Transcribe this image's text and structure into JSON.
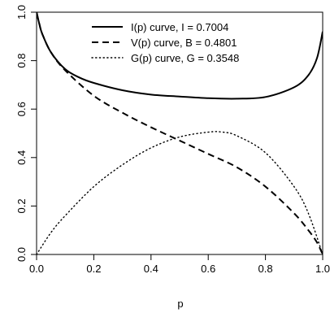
{
  "chart_data": {
    "type": "line",
    "title": "",
    "xlabel": "p",
    "ylabel": "",
    "xlim": [
      0,
      1
    ],
    "ylim": [
      0,
      1
    ],
    "x_ticks": [
      "0.0",
      "0.2",
      "0.4",
      "0.6",
      "0.8",
      "1.0"
    ],
    "y_ticks": [
      "0.0",
      "0.2",
      "0.4",
      "0.6",
      "0.8",
      "1.0"
    ],
    "grid": false,
    "legend_position": "top-right",
    "series": [
      {
        "name": "I(p) curve, I = 0.7004",
        "style": "solid",
        "color": "#000000",
        "x": [
          0.0,
          0.01,
          0.02,
          0.05,
          0.1,
          0.15,
          0.2,
          0.3,
          0.4,
          0.5,
          0.6,
          0.7,
          0.8,
          0.9,
          0.95,
          0.98,
          1.0
        ],
        "y": [
          1.0,
          0.95,
          0.91,
          0.835,
          0.765,
          0.73,
          0.708,
          0.678,
          0.66,
          0.652,
          0.645,
          0.643,
          0.65,
          0.69,
          0.74,
          0.81,
          0.92
        ]
      },
      {
        "name": "V(p) curve, B = 0.4801",
        "style": "dashed",
        "color": "#000000",
        "x": [
          0.0,
          0.01,
          0.02,
          0.05,
          0.1,
          0.2,
          0.3,
          0.4,
          0.5,
          0.6,
          0.7,
          0.8,
          0.9,
          0.95,
          0.98,
          1.0
        ],
        "y": [
          1.0,
          0.95,
          0.91,
          0.835,
          0.76,
          0.655,
          0.585,
          0.525,
          0.47,
          0.415,
          0.36,
          0.28,
          0.17,
          0.1,
          0.05,
          0.0
        ]
      },
      {
        "name": "G(p) curve, G = 0.3548",
        "style": "dotted",
        "color": "#000000",
        "x": [
          0.0,
          0.05,
          0.1,
          0.2,
          0.3,
          0.4,
          0.5,
          0.6,
          0.65,
          0.7,
          0.8,
          0.9,
          0.95,
          1.0
        ],
        "y": [
          0.0,
          0.09,
          0.16,
          0.28,
          0.37,
          0.44,
          0.485,
          0.505,
          0.505,
          0.49,
          0.42,
          0.28,
          0.17,
          0.0
        ]
      }
    ]
  }
}
